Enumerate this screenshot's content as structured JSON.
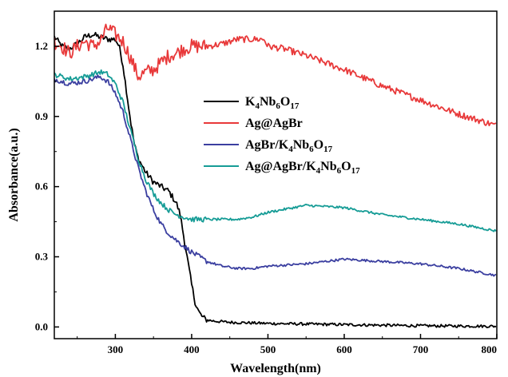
{
  "chart_data": {
    "type": "line",
    "xlabel": "Wavelength(nm)",
    "ylabel": "Absorbance(a.u.)",
    "xlim": [
      220,
      800
    ],
    "ylim": [
      -0.05,
      1.35
    ],
    "xticks": [
      300,
      400,
      500,
      600,
      700,
      800
    ],
    "yticks": [
      0.0,
      0.3,
      0.6,
      0.9,
      1.2
    ],
    "xtick_labels": [
      "300",
      "400",
      "500",
      "600",
      "700",
      "800"
    ],
    "ytick_labels": [
      "0.0",
      "0.3",
      "0.6",
      "0.9",
      "1.2"
    ],
    "grid": false,
    "legend_position": "center",
    "colors": {
      "k4": "#000000",
      "agagbr": "#e8393a",
      "agbr_k4": "#3b3fa0",
      "ag_agbr_k4": "#169c96"
    },
    "series": [
      {
        "name": "K4Nb6O17",
        "legend": [
          [
            "K",
            ""
          ],
          [
            "4",
            "sub"
          ],
          [
            "Nb",
            ""
          ],
          [
            "6",
            "sub"
          ],
          [
            "O",
            ""
          ],
          [
            "17",
            "sub"
          ]
        ],
        "color": "#000000",
        "noise": 0.006,
        "x": [
          220,
          230,
          240,
          250,
          260,
          270,
          280,
          290,
          300,
          305,
          310,
          315,
          320,
          325,
          330,
          340,
          350,
          360,
          370,
          380,
          385,
          390,
          395,
          400,
          405,
          410,
          415,
          420,
          430,
          450,
          500,
          600,
          700,
          800
        ],
        "y": [
          1.24,
          1.2,
          1.19,
          1.21,
          1.24,
          1.25,
          1.24,
          1.23,
          1.23,
          1.2,
          1.12,
          1.0,
          0.88,
          0.78,
          0.72,
          0.66,
          0.62,
          0.6,
          0.58,
          0.53,
          0.48,
          0.38,
          0.28,
          0.18,
          0.1,
          0.06,
          0.04,
          0.03,
          0.025,
          0.02,
          0.015,
          0.01,
          0.005,
          0.003
        ]
      },
      {
        "name": "Ag@AgBr",
        "legend": [
          [
            "Ag@AgBr",
            ""
          ]
        ],
        "color": "#e8393a",
        "noise": 0.014,
        "x": [
          220,
          230,
          240,
          250,
          260,
          270,
          280,
          290,
          300,
          310,
          320,
          330,
          340,
          350,
          360,
          370,
          380,
          390,
          400,
          420,
          440,
          460,
          480,
          495,
          500,
          520,
          550,
          600,
          650,
          700,
          750,
          800
        ],
        "y": [
          1.22,
          1.2,
          1.17,
          1.2,
          1.22,
          1.2,
          1.22,
          1.28,
          1.25,
          1.22,
          1.15,
          1.07,
          1.09,
          1.1,
          1.13,
          1.16,
          1.17,
          1.19,
          1.2,
          1.2,
          1.21,
          1.23,
          1.23,
          1.23,
          1.2,
          1.19,
          1.16,
          1.1,
          1.03,
          0.97,
          0.91,
          0.86
        ]
      },
      {
        "name": "AgBr/K4Nb6O17",
        "legend": [
          [
            "AgBr/K",
            ""
          ],
          [
            "4",
            "sub"
          ],
          [
            "Nb",
            ""
          ],
          [
            "6",
            "sub"
          ],
          [
            "O",
            ""
          ],
          [
            "17",
            "sub"
          ]
        ],
        "color": "#3b3fa0",
        "noise": 0.005,
        "x": [
          220,
          240,
          260,
          280,
          290,
          300,
          310,
          320,
          330,
          340,
          350,
          360,
          370,
          380,
          400,
          420,
          440,
          460,
          480,
          500,
          550,
          600,
          650,
          700,
          750,
          800
        ],
        "y": [
          1.06,
          1.04,
          1.05,
          1.07,
          1.05,
          1.0,
          0.92,
          0.8,
          0.68,
          0.58,
          0.5,
          0.44,
          0.4,
          0.37,
          0.32,
          0.28,
          0.26,
          0.25,
          0.25,
          0.26,
          0.27,
          0.29,
          0.28,
          0.27,
          0.25,
          0.22
        ]
      },
      {
        "name": "Ag@AgBr/K4Nb6O17",
        "legend": [
          [
            "Ag@AgBr/K",
            ""
          ],
          [
            "4",
            "sub"
          ],
          [
            "Nb",
            ""
          ],
          [
            "6",
            "sub"
          ],
          [
            "O",
            ""
          ],
          [
            "17",
            "sub"
          ]
        ],
        "color": "#169c96",
        "noise": 0.005,
        "x": [
          220,
          240,
          260,
          280,
          290,
          300,
          310,
          320,
          330,
          340,
          350,
          360,
          370,
          380,
          390,
          400,
          420,
          440,
          460,
          480,
          500,
          550,
          600,
          650,
          700,
          750,
          800
        ],
        "y": [
          1.08,
          1.06,
          1.07,
          1.09,
          1.08,
          1.04,
          0.96,
          0.84,
          0.72,
          0.63,
          0.57,
          0.53,
          0.5,
          0.48,
          0.47,
          0.46,
          0.46,
          0.46,
          0.46,
          0.47,
          0.49,
          0.52,
          0.51,
          0.48,
          0.46,
          0.44,
          0.41
        ]
      }
    ]
  }
}
